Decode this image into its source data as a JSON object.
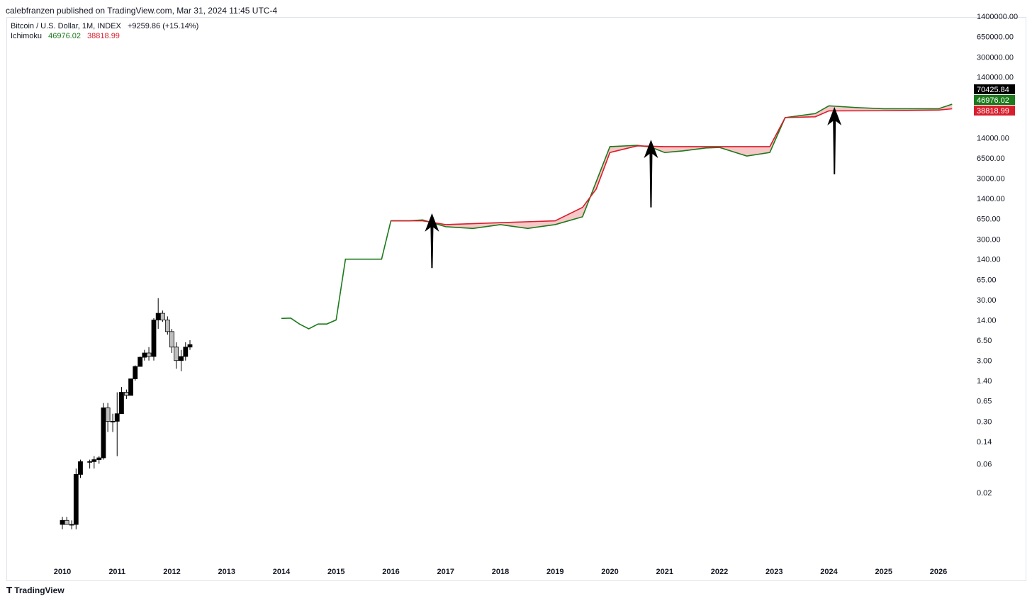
{
  "header": {
    "publisher_line": "calebfranzen published on TradingView.com, Mar 31, 2024 11:45 UTC-4"
  },
  "legend": {
    "symbol": "Bitcoin / U.S. Dollar, 1M, INDEX",
    "change": "+9259.86 (+15.14%)",
    "indicator": "Ichimoku",
    "value_green": "46976.02",
    "value_red": "38818.99"
  },
  "colors": {
    "lead_a": "#1b7a1b",
    "lead_b": "#d81e2c",
    "cloud_bear": "#f4b6b6",
    "candle_up": "#000000",
    "candle_down": "#bdbdbd",
    "last_price_bg": "#000000"
  },
  "brand": {
    "icon": "tradingview-logo-icon",
    "name": "TradingView"
  },
  "chart_data": {
    "type": "candlestick",
    "scale": "log",
    "x_range": [
      2009.5,
      2026.6
    ],
    "y_range": [
      0.0028,
      1500000
    ],
    "x_ticks": [
      "2010",
      "2011",
      "2012",
      "2013",
      "2014",
      "2015",
      "2016",
      "2017",
      "2018",
      "2019",
      "2020",
      "2021",
      "2022",
      "2023",
      "2024",
      "2025",
      "2026"
    ],
    "y_ticks": [
      "1400000.00",
      "650000.00",
      "300000.00",
      "140000.00",
      "14000.00",
      "6500.00",
      "3000.00",
      "1400.00",
      "650.00",
      "300.00",
      "140.00",
      "65.00",
      "30.00",
      "14.00",
      "6.50",
      "3.00",
      "1.40",
      "0.65",
      "0.30",
      "0.14",
      "0.06",
      "0.02"
    ],
    "price_labels": [
      {
        "text": "70425.84",
        "value": 70425.84,
        "color": "#000000"
      },
      {
        "text": "46976.02",
        "value": 46976.02,
        "color": "#1b7a1b"
      },
      {
        "text": "38818.99",
        "value": 38818.99,
        "color": "#d81e2c"
      }
    ],
    "series_ohlc": [
      [
        2010.0,
        0.006,
        0.008,
        0.005,
        0.007
      ],
      [
        2010.08,
        0.007,
        0.008,
        0.006,
        0.006
      ],
      [
        2010.17,
        0.006,
        0.007,
        0.005,
        0.006
      ],
      [
        2010.25,
        0.006,
        0.05,
        0.005,
        0.04
      ],
      [
        2010.33,
        0.04,
        0.07,
        0.035,
        0.065
      ],
      [
        2010.5,
        0.065,
        0.07,
        0.05,
        0.065
      ],
      [
        2010.58,
        0.065,
        0.08,
        0.05,
        0.07
      ],
      [
        2010.67,
        0.07,
        0.08,
        0.06,
        0.075
      ],
      [
        2010.75,
        0.075,
        0.6,
        0.07,
        0.5
      ],
      [
        2010.83,
        0.5,
        0.6,
        0.2,
        0.3
      ],
      [
        2010.92,
        0.3,
        0.4,
        0.2,
        0.3
      ],
      [
        2011.0,
        0.3,
        0.9,
        0.08,
        0.4
      ],
      [
        2011.08,
        0.4,
        1.1,
        0.4,
        0.9
      ],
      [
        2011.17,
        0.9,
        1.0,
        0.7,
        0.8
      ],
      [
        2011.25,
        0.8,
        1.5,
        0.8,
        1.5
      ],
      [
        2011.33,
        1.5,
        2.5,
        1.4,
        2.4
      ],
      [
        2011.42,
        2.4,
        3.5,
        2.4,
        3.4
      ],
      [
        2011.5,
        3.4,
        4.5,
        3.0,
        4.0
      ],
      [
        2011.58,
        4.0,
        5.0,
        3.0,
        3.5
      ],
      [
        2011.67,
        3.5,
        15,
        3.0,
        14
      ],
      [
        2011.75,
        14,
        32,
        10,
        18
      ],
      [
        2011.83,
        18,
        20,
        13,
        14
      ],
      [
        2011.92,
        14,
        16,
        8,
        9
      ],
      [
        2012.0,
        9,
        10,
        4,
        5
      ],
      [
        2012.08,
        5,
        6,
        2.2,
        3
      ],
      [
        2012.17,
        3,
        4.5,
        2.0,
        3.5
      ],
      [
        2012.25,
        3.5,
        6,
        3.0,
        5
      ],
      [
        2012.33,
        5,
        6.5,
        4.5,
        5.5
      ]
    ],
    "series_kumo": [
      {
        "name": "",
        "points": [
          [
            2014.0,
            14.8
          ],
          [
            2014.17,
            15
          ],
          [
            2014.33,
            12
          ],
          [
            2014.5,
            10
          ],
          [
            2014.67,
            12
          ],
          [
            2014.83,
            12
          ],
          [
            2015.0,
            14
          ],
          [
            2015.17,
            140
          ],
          [
            2015.5,
            140
          ],
          [
            2015.83,
            140
          ],
          [
            2016.0,
            600
          ],
          [
            2016.33,
            600
          ],
          [
            2016.58,
            620
          ],
          [
            2017.0,
            480
          ],
          [
            2017.5,
            450
          ],
          [
            2018.0,
            520
          ],
          [
            2018.5,
            450
          ],
          [
            2019.0,
            520
          ],
          [
            2019.5,
            700
          ],
          [
            2020.0,
            10000
          ],
          [
            2020.5,
            10500
          ],
          [
            2020.75,
            9800
          ],
          [
            2021.0,
            8000
          ],
          [
            2021.33,
            8500
          ],
          [
            2021.75,
            9500
          ],
          [
            2022.0,
            9700
          ],
          [
            2022.5,
            7000
          ],
          [
            2022.92,
            8000
          ],
          [
            2023.2,
            30000
          ],
          [
            2023.75,
            35000
          ],
          [
            2024.0,
            46976
          ],
          [
            2024.5,
            44000
          ],
          [
            2025.0,
            42000
          ],
          [
            2025.5,
            42000
          ],
          [
            2026.0,
            42000
          ],
          [
            2026.25,
            50000
          ]
        ]
      },
      {
        "name": "",
        "points": [
          [
            2016.0,
            600
          ],
          [
            2016.58,
            600
          ],
          [
            2017.0,
            520
          ],
          [
            2018.0,
            560
          ],
          [
            2019.0,
            600
          ],
          [
            2019.5,
            1000
          ],
          [
            2019.75,
            2000
          ],
          [
            2020.0,
            8000
          ],
          [
            2020.5,
            10300
          ],
          [
            2021.0,
            10000
          ],
          [
            2022.0,
            10000
          ],
          [
            2022.92,
            10000
          ],
          [
            2023.2,
            30000
          ],
          [
            2023.75,
            31000
          ],
          [
            2024.0,
            38819
          ],
          [
            2025.0,
            39000
          ],
          [
            2026.0,
            40000
          ],
          [
            2026.25,
            42000
          ]
        ]
      }
    ],
    "annotations": [
      {
        "kind": "arrow",
        "x": 2016.75,
        "from_value": 100,
        "to_value": 800
      },
      {
        "kind": "arrow",
        "x": 2020.75,
        "from_value": 1000,
        "to_value": 13000
      },
      {
        "kind": "arrow",
        "x": 2024.1,
        "from_value": 3500,
        "to_value": 45000
      }
    ]
  }
}
